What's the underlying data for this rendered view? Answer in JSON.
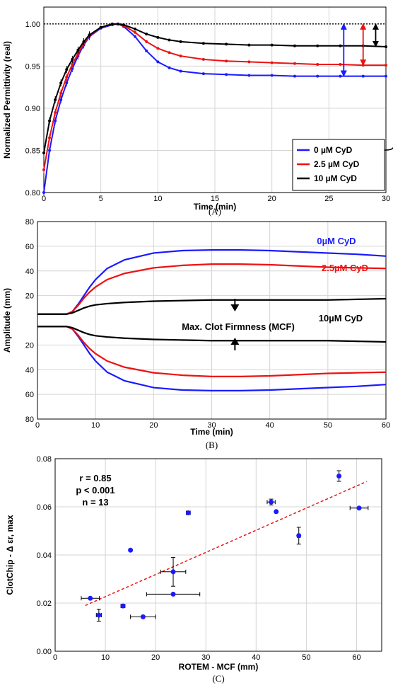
{
  "chart_data": [
    {
      "type": "line",
      "panel_label": "(A)",
      "xlabel": "Time (min)",
      "ylabel": "Normalized Permittivity (real)",
      "xlim": [
        0,
        30
      ],
      "ylim": [
        0.8,
        1.02
      ],
      "xticks": [
        "0",
        "5",
        "10",
        "15",
        "20",
        "25",
        "30"
      ],
      "yticks": [
        "0.80",
        "0.85",
        "0.90",
        "0.95",
        "1.00"
      ],
      "grid": true,
      "legend_position": "bottom-right",
      "reference_line": 1.0,
      "annotation": "Δεr,max",
      "series": [
        {
          "name": "0 µM CyD",
          "color": "#1a1aff",
          "x": [
            0,
            0.5,
            1,
            1.5,
            2,
            2.5,
            3,
            3.5,
            4,
            5,
            6,
            6.5,
            7,
            8,
            9,
            10,
            11,
            12,
            14,
            16,
            18,
            20,
            22,
            24,
            26,
            28,
            30
          ],
          "y": [
            0.8,
            0.85,
            0.885,
            0.91,
            0.93,
            0.947,
            0.962,
            0.975,
            0.985,
            0.995,
            0.999,
            1.0,
            0.997,
            0.985,
            0.968,
            0.955,
            0.948,
            0.944,
            0.941,
            0.94,
            0.939,
            0.939,
            0.938,
            0.938,
            0.938,
            0.938,
            0.938
          ]
        },
        {
          "name": "2.5 µM CyD",
          "color": "#ee1111",
          "x": [
            0,
            0.5,
            1,
            1.5,
            2,
            2.5,
            3,
            3.5,
            4,
            5,
            6,
            6.5,
            7,
            8,
            9,
            10,
            11,
            12,
            14,
            16,
            18,
            20,
            22,
            24,
            26,
            28,
            30
          ],
          "y": [
            0.827,
            0.865,
            0.895,
            0.918,
            0.937,
            0.952,
            0.965,
            0.977,
            0.986,
            0.996,
            1.0,
            1.0,
            0.998,
            0.99,
            0.979,
            0.971,
            0.966,
            0.962,
            0.958,
            0.956,
            0.955,
            0.954,
            0.953,
            0.952,
            0.952,
            0.951,
            0.951
          ]
        },
        {
          "name": "10 µM CyD",
          "color": "#000000",
          "x": [
            0,
            0.5,
            1,
            1.5,
            2,
            2.5,
            3,
            3.5,
            4,
            5,
            6,
            6.5,
            7,
            8,
            9,
            10,
            11,
            12,
            14,
            16,
            18,
            20,
            22,
            24,
            26,
            28,
            30
          ],
          "y": [
            0.847,
            0.885,
            0.91,
            0.93,
            0.946,
            0.958,
            0.969,
            0.979,
            0.987,
            0.996,
            1.0,
            1.0,
            0.999,
            0.994,
            0.988,
            0.984,
            0.981,
            0.979,
            0.977,
            0.976,
            0.975,
            0.975,
            0.974,
            0.974,
            0.974,
            0.974,
            0.973
          ]
        }
      ]
    },
    {
      "type": "line",
      "panel_label": "(B)",
      "xlabel": "Time (min)",
      "ylabel": "Amplitude (mm)",
      "xlim": [
        0,
        60
      ],
      "xticks": [
        "0",
        "10",
        "20",
        "30",
        "40",
        "50",
        "60"
      ],
      "yticks_top": [
        "20",
        "40",
        "60",
        "80"
      ],
      "yticks_bottom": [
        "20",
        "40",
        "60",
        "80"
      ],
      "ytick_values": [
        20,
        40,
        60,
        80
      ],
      "grid": true,
      "annotation": "Max. Clot Firmness (MCF)",
      "series": [
        {
          "name": "0µM CyD",
          "color": "#1a1aff",
          "x": [
            0,
            5,
            6,
            7,
            8,
            9,
            10,
            12,
            15,
            20,
            25,
            30,
            35,
            40,
            45,
            50,
            55,
            60
          ],
          "y": [
            0,
            0,
            2,
            8,
            15,
            22,
            28,
            37,
            44,
            49.5,
            51.5,
            52,
            52,
            51.5,
            50.5,
            49.5,
            48.5,
            47
          ]
        },
        {
          "name": "2.5µM CyD",
          "color": "#ee1111",
          "x": [
            0,
            5,
            6,
            7,
            8,
            9,
            10,
            12,
            15,
            20,
            25,
            30,
            35,
            40,
            45,
            50,
            55,
            60
          ],
          "y": [
            0,
            0,
            2,
            7,
            13,
            18,
            22,
            28,
            33,
            37.5,
            39.5,
            40.5,
            40.5,
            40,
            39,
            38,
            37.5,
            37
          ]
        },
        {
          "name": "10µM CyD",
          "color": "#000000",
          "x": [
            0,
            5,
            6,
            7,
            8,
            9,
            10,
            12,
            15,
            20,
            25,
            30,
            35,
            40,
            45,
            50,
            55,
            60
          ],
          "y": [
            0,
            0,
            1,
            3,
            5,
            6.5,
            7.5,
            8.5,
            9.5,
            10.5,
            11,
            11.5,
            11.5,
            11.5,
            11.5,
            11.5,
            12,
            12.5
          ]
        }
      ]
    },
    {
      "type": "scatter",
      "panel_label": "(C)",
      "xlabel": "ROTEM - MCF (mm)",
      "ylabel": "ClotChip - Δ εr, max",
      "xlim": [
        0,
        65
      ],
      "ylim": [
        0,
        0.08
      ],
      "xticks": [
        "0",
        "10",
        "20",
        "30",
        "40",
        "50",
        "60"
      ],
      "yticks": [
        "0.00",
        "0.02",
        "0.04",
        "0.06",
        "0.08"
      ],
      "grid": true,
      "stats": [
        "r = 0.85",
        "p < 0.001",
        "n = 13"
      ],
      "fit": {
        "x": [
          6,
          62
        ],
        "y": [
          0.019,
          0.0705
        ],
        "color": "#ee1111"
      },
      "points": [
        {
          "x": 7,
          "y": 0.022,
          "xerr": 1.8,
          "yerr": 0
        },
        {
          "x": 8.7,
          "y": 0.015,
          "xerr": 0.5,
          "yerr": 0.0025
        },
        {
          "x": 13.5,
          "y": 0.0188,
          "xerr": 0.4,
          "yerr": 0
        },
        {
          "x": 15,
          "y": 0.042,
          "xerr": 0,
          "yerr": 0
        },
        {
          "x": 17.5,
          "y": 0.0143,
          "xerr": 2.5,
          "yerr": 0
        },
        {
          "x": 23.5,
          "y": 0.033,
          "xerr": 2.5,
          "yerr": 0.006
        },
        {
          "x": 23.5,
          "y": 0.0237,
          "xerr": 5.3,
          "yerr": 0
        },
        {
          "x": 26.5,
          "y": 0.0575,
          "xerr": 0.4,
          "yerr": 0
        },
        {
          "x": 43,
          "y": 0.062,
          "xerr": 0.8,
          "yerr": 0.0012
        },
        {
          "x": 44,
          "y": 0.058,
          "xerr": 0,
          "yerr": 0
        },
        {
          "x": 48.5,
          "y": 0.048,
          "xerr": 0.3,
          "yerr": 0.0035
        },
        {
          "x": 56.5,
          "y": 0.0728,
          "xerr": 0,
          "yerr": 0.0022
        },
        {
          "x": 60.5,
          "y": 0.0595,
          "xerr": 1.8,
          "yerr": 0
        }
      ]
    }
  ]
}
